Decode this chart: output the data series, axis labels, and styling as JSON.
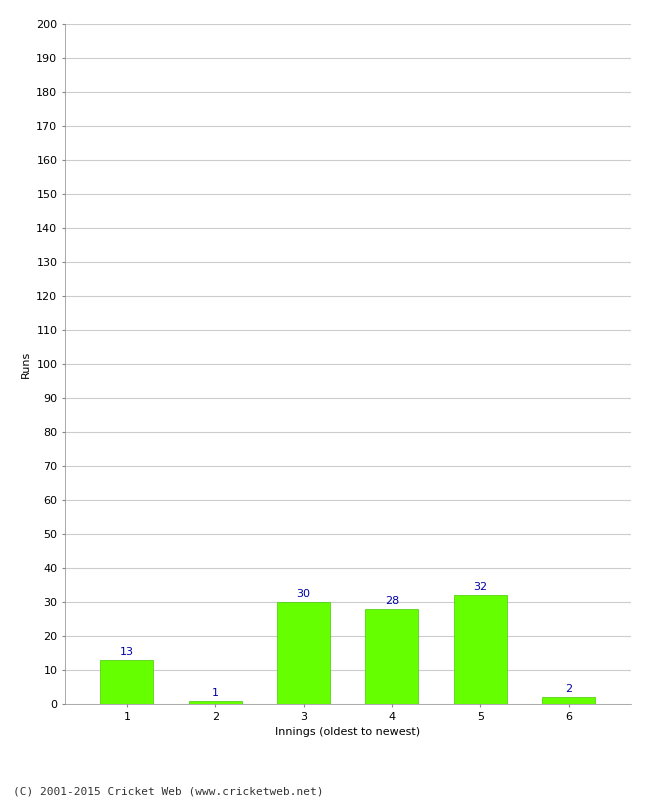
{
  "xlabel": "Innings (oldest to newest)",
  "ylabel": "Runs",
  "categories": [
    "1",
    "2",
    "3",
    "4",
    "5",
    "6"
  ],
  "values": [
    13,
    1,
    30,
    28,
    32,
    2
  ],
  "bar_color": "#66ff00",
  "bar_edge_color": "#44cc00",
  "label_color": "#0000aa",
  "ylim": [
    0,
    200
  ],
  "yticks": [
    0,
    10,
    20,
    30,
    40,
    50,
    60,
    70,
    80,
    90,
    100,
    110,
    120,
    130,
    140,
    150,
    160,
    170,
    180,
    190,
    200
  ],
  "grid_color": "#cccccc",
  "background_color": "#ffffff",
  "footer": "(C) 2001-2015 Cricket Web (www.cricketweb.net)",
  "label_fontsize": 8,
  "axis_label_fontsize": 8,
  "tick_fontsize": 8,
  "footer_fontsize": 8
}
